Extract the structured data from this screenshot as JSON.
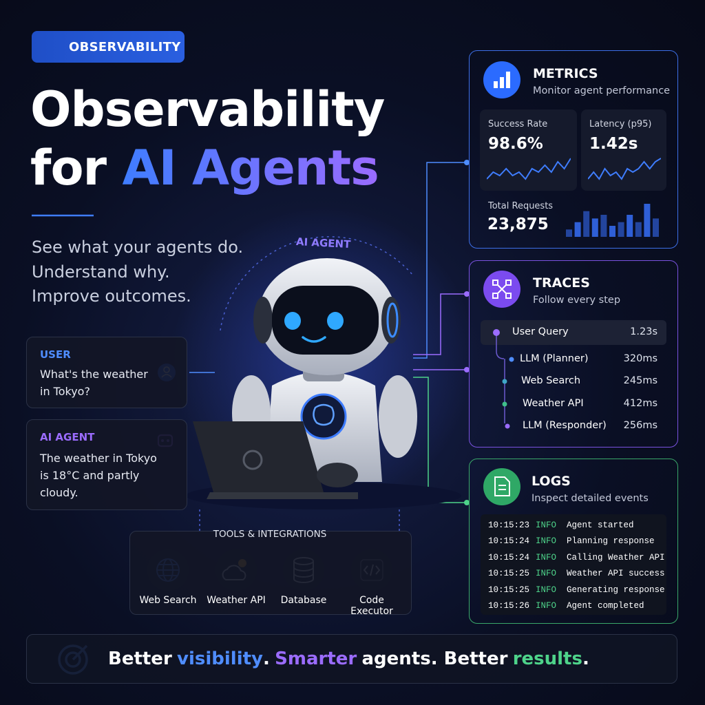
{
  "badge": "OBSERVABILITY",
  "title": {
    "line1": "Observability",
    "line2_prefix": "for",
    "line2_highlight": "AI Agents"
  },
  "subtitle": [
    "See what your agents do.",
    "Understand why.",
    "Improve outcomes."
  ],
  "agent_label": "AI AGENT",
  "chat": [
    {
      "role": "USER",
      "text": "What's the weather in Tokyo?"
    },
    {
      "role": "AI AGENT",
      "text": "The weather in Tokyo is 18°C and partly cloudy."
    }
  ],
  "tools": {
    "title": "TOOLS & INTEGRATIONS",
    "items": [
      "Web Search",
      "Weather API",
      "Database",
      "Code Executor"
    ]
  },
  "metrics": {
    "title": "METRICS",
    "subtitle": "Monitor agent performance",
    "cards": [
      {
        "label": "Success Rate",
        "value": "98.6%",
        "trend": [
          3,
          5,
          4,
          6,
          4,
          5,
          3,
          6,
          5,
          7,
          5,
          8,
          6,
          9
        ]
      },
      {
        "label": "Latency (p95)",
        "value": "1.42s",
        "trend": [
          3,
          5,
          3,
          6,
          4,
          5,
          3,
          6,
          5,
          6,
          8,
          6,
          8,
          9
        ]
      }
    ],
    "total": {
      "label": "Total Requests",
      "value": "23,875",
      "bars": [
        2,
        4,
        7,
        5,
        6,
        3,
        4,
        6,
        4,
        9,
        5
      ]
    }
  },
  "traces": {
    "title": "TRACES",
    "subtitle": "Follow every step",
    "spans": [
      {
        "name": "User Query",
        "duration": "1.23s"
      },
      {
        "name": "LLM (Planner)",
        "duration": "320ms"
      },
      {
        "name": "Web Search",
        "duration": "245ms"
      },
      {
        "name": "Weather API",
        "duration": "412ms"
      },
      {
        "name": "LLM (Responder)",
        "duration": "256ms"
      }
    ]
  },
  "logs": {
    "title": "LOGS",
    "subtitle": "Inspect detailed events",
    "entries": [
      {
        "time": "10:15:23",
        "level": "INFO",
        "message": "Agent started"
      },
      {
        "time": "10:15:24",
        "level": "INFO",
        "message": "Planning response"
      },
      {
        "time": "10:15:24",
        "level": "INFO",
        "message": "Calling Weather API"
      },
      {
        "time": "10:15:25",
        "level": "INFO",
        "message": "Weather API success"
      },
      {
        "time": "10:15:25",
        "level": "INFO",
        "message": "Generating response"
      },
      {
        "time": "10:15:26",
        "level": "INFO",
        "message": "Agent completed"
      }
    ]
  },
  "footer": [
    {
      "text": "Better",
      "color": "#ffffff"
    },
    {
      "text": "visibility",
      "color": "#4f8dff"
    },
    {
      "text": ".",
      "color": "#ffffff"
    },
    {
      "text": "Smarter",
      "color": "#9b6cff"
    },
    {
      "text": "agents. Better",
      "color": "#ffffff"
    },
    {
      "text": "results",
      "color": "#4ed38a"
    },
    {
      "text": ".",
      "color": "#ffffff"
    }
  ]
}
